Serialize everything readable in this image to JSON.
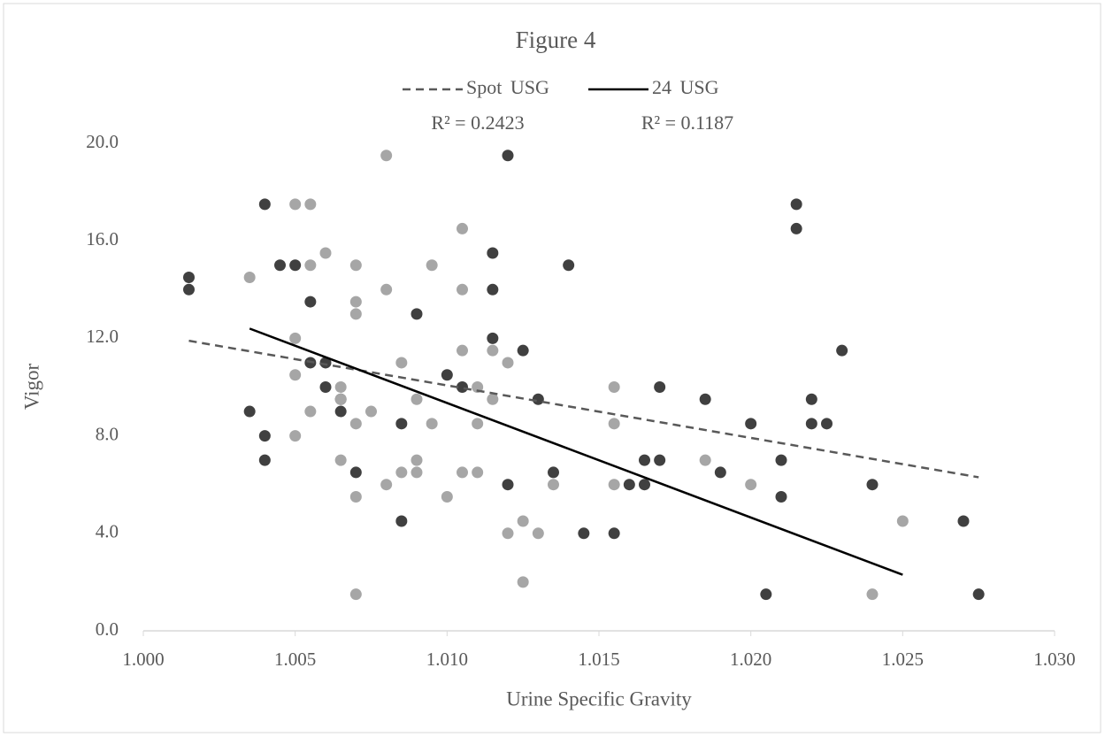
{
  "chart_data": {
    "type": "scatter",
    "title": "Figure 4",
    "x_label": "Urine Specific Gravity",
    "y_label": "Vigor",
    "xlim": [
      1.0,
      1.03
    ],
    "ylim": [
      0,
      20
    ],
    "xticks": [
      {
        "value": 1.0,
        "label": "1.000"
      },
      {
        "value": 1.005,
        "label": "1.005"
      },
      {
        "value": 1.01,
        "label": "1.010"
      },
      {
        "value": 1.015,
        "label": "1.015"
      },
      {
        "value": 1.02,
        "label": "1.020"
      },
      {
        "value": 1.025,
        "label": "1.025"
      },
      {
        "value": 1.03,
        "label": "1.030"
      }
    ],
    "yticks": [
      {
        "value": 0,
        "label": "0.0"
      },
      {
        "value": 4,
        "label": "4.0"
      },
      {
        "value": 8,
        "label": "8.0"
      },
      {
        "value": 12,
        "label": "12.0"
      },
      {
        "value": 16,
        "label": "16.0"
      },
      {
        "value": 20,
        "label": "20.0"
      }
    ],
    "grid": false,
    "legend": "top",
    "series": [
      {
        "name": "Spot USG",
        "color": "#404040",
        "trend_color": "#595959",
        "trend_dash": true,
        "r2_label": "R² = 0.2423",
        "trendline": {
          "x": [
            1.0015,
            1.0275
          ],
          "y": [
            11.9,
            6.3
          ]
        },
        "x": [
          1.0015,
          1.0015,
          1.0035,
          1.004,
          1.004,
          1.004,
          1.0045,
          1.005,
          1.0055,
          1.0055,
          1.006,
          1.006,
          1.0065,
          1.0065,
          1.007,
          1.0085,
          1.0085,
          1.009,
          1.01,
          1.0105,
          1.012,
          1.0115,
          1.0115,
          1.0115,
          1.012,
          1.0125,
          1.013,
          1.0135,
          1.014,
          1.0145,
          1.0155,
          1.016,
          1.0165,
          1.0165,
          1.017,
          1.017,
          1.0185,
          1.019,
          1.02,
          1.0205,
          1.021,
          1.021,
          1.0215,
          1.0215,
          1.022,
          1.022,
          1.0225,
          1.023,
          1.024,
          1.027,
          1.0275
        ],
        "values": [
          14.5,
          14.0,
          9.0,
          17.5,
          8.0,
          7.0,
          15.0,
          15.0,
          13.5,
          11.0,
          11.0,
          10.0,
          9.5,
          9.0,
          6.5,
          8.5,
          4.5,
          13.0,
          10.5,
          10.0,
          19.5,
          15.5,
          14.0,
          12.0,
          6.0,
          11.5,
          9.5,
          6.5,
          15.0,
          4.0,
          4.0,
          6.0,
          7.0,
          6.0,
          10.0,
          7.0,
          9.5,
          6.5,
          8.5,
          1.5,
          7.0,
          5.5,
          17.5,
          16.5,
          9.5,
          8.5,
          8.5,
          11.5,
          6.0,
          4.5,
          1.5
        ]
      },
      {
        "name": "24 USG",
        "color": "#a6a6a6",
        "trend_color": "#000000",
        "trend_dash": false,
        "r2_label": "R² = 0.1187",
        "trendline": {
          "x": [
            1.0035,
            1.025
          ],
          "y": [
            12.4,
            2.3
          ]
        },
        "x": [
          1.0035,
          1.005,
          1.0055,
          1.005,
          1.005,
          1.005,
          1.0055,
          1.0055,
          1.006,
          1.0065,
          1.0065,
          1.0065,
          1.007,
          1.007,
          1.007,
          1.007,
          1.007,
          1.007,
          1.0075,
          1.008,
          1.008,
          1.008,
          1.0085,
          1.0085,
          1.009,
          1.009,
          1.009,
          1.0095,
          1.0095,
          1.01,
          1.0105,
          1.0105,
          1.0105,
          1.0105,
          1.011,
          1.011,
          1.011,
          1.0115,
          1.0115,
          1.012,
          1.012,
          1.0125,
          1.0125,
          1.013,
          1.0135,
          1.0155,
          1.0155,
          1.0155,
          1.0185,
          1.02,
          1.024,
          1.025
        ],
        "values": [
          14.5,
          17.5,
          17.5,
          12.0,
          10.5,
          8.0,
          15.0,
          9.0,
          15.5,
          10.0,
          9.5,
          7.0,
          15.0,
          13.5,
          13.0,
          8.5,
          5.5,
          1.5,
          9.0,
          19.5,
          14.0,
          6.0,
          11.0,
          6.5,
          9.5,
          7.0,
          6.5,
          15.0,
          8.5,
          5.5,
          16.5,
          14.0,
          11.5,
          6.5,
          10.0,
          8.5,
          6.5,
          11.5,
          9.5,
          11.0,
          4.0,
          4.5,
          2.0,
          4.0,
          6.0,
          10.0,
          8.5,
          6.0,
          7.0,
          6.0,
          1.5,
          4.5
        ]
      }
    ]
  }
}
